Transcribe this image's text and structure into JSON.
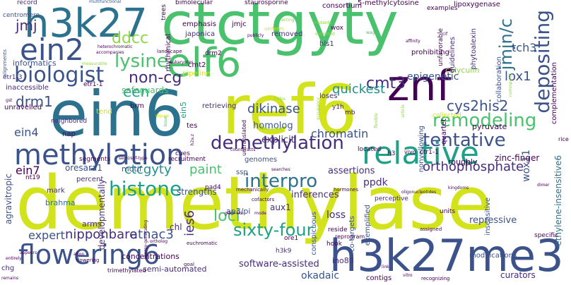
{
  "palette": {
    "yellow": "#d2e21b",
    "lime": "#8fd744",
    "green": "#4ac16d",
    "teal": "#1fa187",
    "cyan": "#21908d",
    "blue": "#2c728e",
    "indigo": "#3b528b",
    "purple": "#472d7b",
    "dark": "#440154"
  },
  "words": [
    "demethylase",
    "ref6",
    "ein6",
    "ctctgyty",
    "h3k27me3",
    "h3k27",
    "elf6",
    "znf",
    "flowering6",
    "methylation",
    "relative",
    "ein2",
    "biologist",
    "histone",
    "demethylation",
    "depositing",
    "tentative",
    "remodeling",
    "lysine",
    "sixty-four",
    "interpro",
    "non-cg",
    "cmt3",
    "jmjn/c",
    "loci",
    "cys2his2",
    "orthophosphate",
    "een",
    "ctcgyty",
    "drm1",
    "ddcc",
    "quickest",
    "dikinase",
    "jmj",
    "tch3",
    "paint",
    "lox1",
    "epigenetic",
    "ein4",
    "ein7",
    "ies6",
    "atnac3",
    "expert",
    "nipponbare",
    "chromatin",
    "safeguards",
    "homolog",
    "explicit",
    "assertions",
    "inferences",
    "ppdk",
    "aux1",
    "loss",
    "okadaic",
    "software-assisted",
    "semi-automated",
    "repressive",
    "curators",
    "contigs",
    "ino80",
    "ethylene-insensitive6",
    "wox11",
    "developmentally",
    "agravitropic",
    "arms",
    "chl",
    "brahma",
    "oresara1",
    "motif",
    "strengths",
    "record",
    "multifunctional",
    "bimolecular",
    "staurosporine",
    "5-methylcytosine",
    "lipoxygenase",
    "consortium",
    "centromere",
    "trees",
    "emphasis",
    "jmjc",
    "japonica",
    "removed",
    "hls1",
    "informatics",
    "rhythmical",
    "cmt2",
    "pipeline",
    "inaccessible",
    "etr1-1",
    "etr1-3",
    "unravelled",
    "tend",
    "neighbored",
    "brm",
    "nap",
    "pyruvate",
    "calyculin",
    "collected",
    "prohibiting",
    "guidelines",
    "unfavorable",
    "phytoalexin",
    "collaboration",
    "complementation",
    "zinc-finger",
    "roughly",
    "quartet",
    "ctr1-1",
    "h3",
    "vivo",
    "located",
    "percent",
    "mark",
    "nt19",
    "ssp",
    "cofactors",
    "ap3/pi",
    "pad4",
    "conspicuous",
    "hook",
    "ore1",
    "h3k9",
    "co-targets",
    "exemplified",
    "modifications",
    "insensitive",
    "nonyellowing",
    "retrieving",
    "loses",
    "y1h",
    "cues",
    "perceptive",
    "concentrations",
    "trimethylated",
    "ation",
    "mechanically",
    "gsk3-like",
    "hormones",
    "chg",
    "reside",
    "reprogram",
    "assigned",
    "specific",
    "units",
    "flowering",
    "euchromatic",
    "entirely",
    "remains",
    "kingdoms",
    "searches",
    "recruitment",
    "segments",
    "semi/snf-type",
    "counteracts",
    "sequence",
    "ein5",
    "drm2",
    "eukaryotes",
    "heterochromatic",
    "accompanies",
    "landscape",
    "publicly",
    "uniform",
    "acting",
    "exploited",
    "wags",
    "affinity",
    "cif",
    "correspond",
    "helps",
    "tes",
    "occupancy",
    "untranslated",
    "flexible",
    "mb",
    "article",
    "issue",
    "gst",
    "h2a.z",
    "dipure",
    "alignments",
    "measurable",
    "oligonucleotides",
    "mutants",
    "goal",
    "link",
    "vitro",
    "rice",
    "recognizing",
    "ortholog",
    "appears",
    "mode",
    "energy-generating",
    "wox",
    "examples",
    "genomes",
    "dimer"
  ]
}
